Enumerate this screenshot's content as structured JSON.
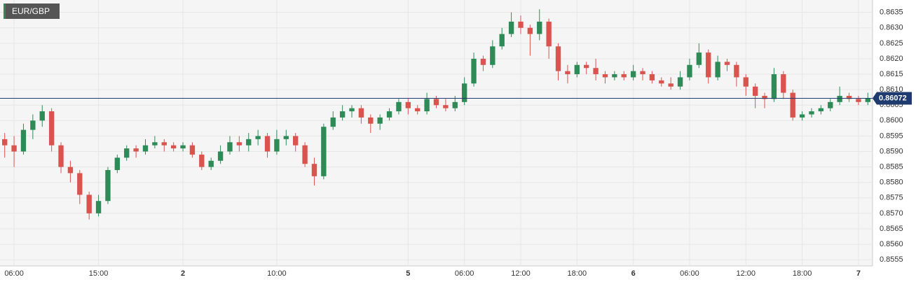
{
  "chart_data": {
    "type": "candlestick",
    "title": "EUR/GBP",
    "categories": [
      null,
      "06:00",
      null,
      null,
      null,
      null,
      null,
      null,
      null,
      null,
      "15:00",
      null,
      null,
      null,
      null,
      null,
      null,
      null,
      null,
      "2",
      null,
      null,
      null,
      null,
      null,
      null,
      null,
      null,
      null,
      "10:00",
      null,
      null,
      null,
      null,
      null,
      null,
      null,
      null,
      null,
      null,
      null,
      null,
      null,
      "5",
      null,
      null,
      null,
      null,
      null,
      "06:00",
      null,
      null,
      null,
      null,
      null,
      "12:00",
      null,
      null,
      null,
      null,
      null,
      "18:00",
      null,
      null,
      null,
      null,
      null,
      "6",
      null,
      null,
      null,
      null,
      null,
      "06:00",
      null,
      null,
      null,
      null,
      null,
      "12:00",
      null,
      null,
      null,
      null,
      null,
      "18:00",
      null,
      null,
      null,
      null,
      null,
      "7",
      null
    ],
    "open": [
      0.8594,
      0.8592,
      0.859,
      0.8597,
      0.86,
      0.8603,
      0.8592,
      0.8585,
      0.8583,
      0.8576,
      0.857,
      0.8574,
      0.8584,
      0.8588,
      0.8591,
      0.859,
      0.8592,
      0.8593,
      0.8592,
      0.8591,
      0.8592,
      0.8589,
      0.8585,
      0.8587,
      0.859,
      0.8593,
      0.8592,
      0.8594,
      0.8595,
      0.859,
      0.8594,
      0.8595,
      0.8592,
      0.8586,
      0.8582,
      0.8598,
      0.8601,
      0.8603,
      0.8604,
      0.8601,
      0.8599,
      0.8601,
      0.8603,
      0.8606,
      0.8604,
      0.8603,
      0.8607,
      0.8605,
      0.8604,
      0.8606,
      0.8612,
      0.862,
      0.8618,
      0.8624,
      0.8628,
      0.8632,
      0.863,
      0.8628,
      0.8632,
      0.8624,
      0.8616,
      0.8615,
      0.8618,
      0.8617,
      0.8615,
      0.8614,
      0.8615,
      0.8614,
      0.8616,
      0.8615,
      0.8613,
      0.8612,
      0.8611,
      0.8614,
      0.8618,
      0.8622,
      0.8614,
      0.8619,
      0.8618,
      0.8614,
      0.8611,
      0.8608,
      0.8607,
      0.8615,
      0.8609,
      0.8601,
      0.8602,
      0.8603,
      0.8604,
      0.8606,
      0.8608,
      0.8607,
      0.8606
    ],
    "high": [
      0.8596,
      0.8595,
      0.8599,
      0.8602,
      0.8605,
      0.8604,
      0.8593,
      0.8587,
      0.8584,
      0.8577,
      0.8576,
      0.8585,
      0.8589,
      0.8592,
      0.8592,
      0.8594,
      0.8595,
      0.8594,
      0.8593,
      0.8593,
      0.8593,
      0.859,
      0.8588,
      0.8592,
      0.8595,
      0.8595,
      0.8596,
      0.8597,
      0.8596,
      0.8597,
      0.8597,
      0.8596,
      0.8593,
      0.8588,
      0.8599,
      0.8603,
      0.8605,
      0.8605,
      0.8605,
      0.8602,
      0.8602,
      0.8604,
      0.8607,
      0.8607,
      0.8605,
      0.8609,
      0.8608,
      0.8607,
      0.8608,
      0.8614,
      0.8622,
      0.8621,
      0.8626,
      0.863,
      0.8635,
      0.8634,
      0.8631,
      0.8636,
      0.8633,
      0.8625,
      0.8618,
      0.8619,
      0.8619,
      0.862,
      0.8616,
      0.8616,
      0.8616,
      0.8618,
      0.8617,
      0.8616,
      0.8614,
      0.8614,
      0.8616,
      0.862,
      0.8625,
      0.8623,
      0.8621,
      0.862,
      0.8619,
      0.8615,
      0.8612,
      0.8609,
      0.8617,
      0.8616,
      0.861,
      0.8603,
      0.8604,
      0.8605,
      0.8607,
      0.8611,
      0.8609,
      0.8608,
      0.8609
    ],
    "low": [
      0.8588,
      0.8585,
      0.8589,
      0.8594,
      0.8598,
      0.859,
      0.8583,
      0.858,
      0.8573,
      0.8568,
      0.8569,
      0.8573,
      0.8583,
      0.8587,
      0.8588,
      0.8589,
      0.8591,
      0.859,
      0.859,
      0.859,
      0.8588,
      0.8584,
      0.8584,
      0.8586,
      0.8589,
      0.859,
      0.859,
      0.8592,
      0.8588,
      0.8589,
      0.8592,
      0.859,
      0.8585,
      0.8579,
      0.8581,
      0.8597,
      0.86,
      0.8601,
      0.8599,
      0.8596,
      0.8597,
      0.86,
      0.8602,
      0.8602,
      0.8602,
      0.8602,
      0.8604,
      0.8603,
      0.8603,
      0.8605,
      0.8611,
      0.8616,
      0.8617,
      0.8623,
      0.8627,
      0.8628,
      0.8621,
      0.8626,
      0.862,
      0.8613,
      0.8612,
      0.8614,
      0.8615,
      0.8613,
      0.8612,
      0.8613,
      0.8613,
      0.8613,
      0.8613,
      0.8612,
      0.8611,
      0.861,
      0.861,
      0.8613,
      0.8617,
      0.8612,
      0.8613,
      0.8616,
      0.8611,
      0.8608,
      0.8604,
      0.8604,
      0.8606,
      0.8607,
      0.86,
      0.86,
      0.8601,
      0.8602,
      0.8603,
      0.8605,
      0.8606,
      0.8605,
      0.8605
    ],
    "close": [
      0.8592,
      0.859,
      0.8597,
      0.86,
      0.8603,
      0.8592,
      0.8585,
      0.8583,
      0.8576,
      0.857,
      0.8574,
      0.8584,
      0.8588,
      0.8591,
      0.859,
      0.8592,
      0.8593,
      0.8592,
      0.8591,
      0.8592,
      0.8589,
      0.8585,
      0.8587,
      0.859,
      0.8593,
      0.8592,
      0.8594,
      0.8595,
      0.859,
      0.8594,
      0.8595,
      0.8592,
      0.8586,
      0.8582,
      0.8598,
      0.8601,
      0.8603,
      0.8604,
      0.8601,
      0.8599,
      0.8601,
      0.8603,
      0.8606,
      0.8604,
      0.8603,
      0.8607,
      0.8605,
      0.8604,
      0.8606,
      0.8612,
      0.862,
      0.8618,
      0.8624,
      0.8628,
      0.8632,
      0.863,
      0.8628,
      0.8632,
      0.8624,
      0.8616,
      0.8615,
      0.8618,
      0.8617,
      0.8615,
      0.8614,
      0.8615,
      0.8614,
      0.8616,
      0.8615,
      0.8613,
      0.8612,
      0.8611,
      0.8614,
      0.8618,
      0.8622,
      0.8614,
      0.8619,
      0.8618,
      0.8614,
      0.8611,
      0.8608,
      0.8607,
      0.8615,
      0.8609,
      0.8601,
      0.8602,
      0.8603,
      0.8604,
      0.8606,
      0.8608,
      0.8607,
      0.8606,
      0.86072
    ],
    "up_color": "#2e8b57",
    "down_color": "#d9534f",
    "last_price": 0.86072,
    "last_price_color": "#1f3a6e",
    "ylim": [
      0.8553,
      0.8639
    ],
    "yticks": [
      0.8555,
      {
        "value": 0.856,
        "label": "0.8560"
      },
      0.8565,
      {
        "value": 0.857,
        "label": "0.8570"
      },
      0.8575,
      {
        "value": 0.858,
        "label": "0.8580"
      },
      0.8585,
      {
        "value": 0.859,
        "label": "0.8590"
      },
      0.8595,
      {
        "value": 0.86,
        "label": "0.8600"
      },
      0.8605,
      {
        "value": 0.861,
        "label": "0.8610"
      },
      0.8615,
      {
        "value": 0.862,
        "label": "0.8620"
      },
      0.8625,
      {
        "value": 0.863,
        "label": "0.8630"
      },
      0.8635
    ],
    "grid": true
  }
}
